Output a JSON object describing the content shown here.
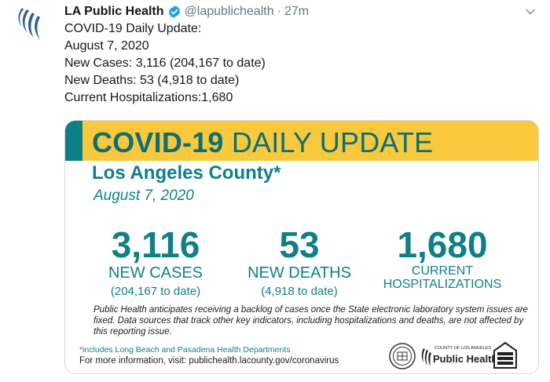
{
  "tweet": {
    "display_name": "LA Public Health",
    "handle": "@lapublichealth",
    "separator": "·",
    "time": "27m",
    "lines": [
      "COVID-19 Daily Update:",
      "August 7, 2020",
      "New Cases: 3,116 (204,167 to date)",
      "New Deaths: 53 (4,918 to date)",
      "Current Hospitalizations:1,680"
    ]
  },
  "card": {
    "title_bold": "COVID-19",
    "title_rest": "DAILY UPDATE",
    "county": "Los Angeles County*",
    "date": "August 7, 2020",
    "stats": {
      "cases": {
        "value": "3,116",
        "label": "NEW CASES",
        "sub": "(204,167 to date)"
      },
      "deaths": {
        "value": "53",
        "label": "NEW DEATHS",
        "sub": "(4,918 to date)"
      },
      "hosp": {
        "value": "1,680",
        "label_1": "CURRENT",
        "label_2": "HOSPITALIZATIONS"
      }
    },
    "note": "Public Health anticipates receiving a backlog of cases once the State electronic laboratory system issues are fixed. Data sources that track other key indicators, including hospitalizations and deaths, are not affected by this reporting issue.",
    "footnote": "*includes Long Beach and Pasadena Health Departments",
    "more_info": "For more information, visit: publichealth.lacounty.gov/coronavirus",
    "logo_small": "COUNTY OF LOS ANGELES",
    "logo_main": "Public Health"
  },
  "colors": {
    "teal": "#0f7f88",
    "banner_yellow": "#f8c83d",
    "verified_blue": "#1da1f2",
    "muted": "#657786"
  },
  "icons": [
    "lapublichealth-avatar-icon",
    "verified-badge-icon",
    "chevron-down-icon",
    "county-seal-icon",
    "public-health-logo-icon",
    "stay-safe-logo-icon"
  ]
}
